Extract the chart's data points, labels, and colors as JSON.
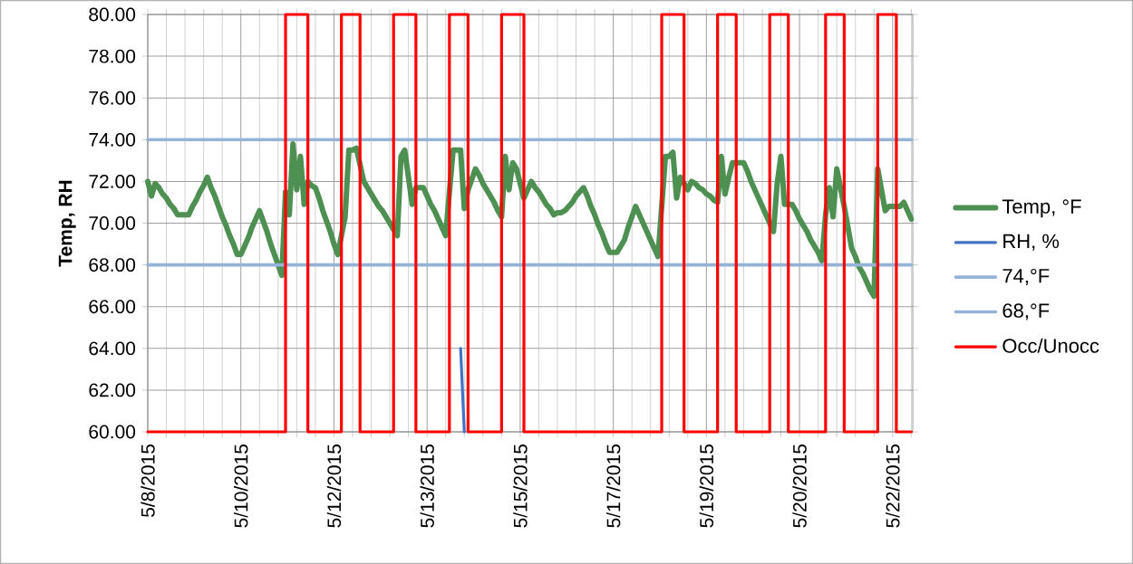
{
  "chart_data": {
    "type": "line",
    "ylabel": "Temp, RH",
    "categories": [
      "5/8/2015",
      null,
      null,
      null,
      null,
      null,
      null,
      null,
      null,
      null,
      null,
      null,
      null,
      null,
      null,
      null,
      null,
      null,
      null,
      null,
      null,
      null,
      null,
      null,
      null,
      "5/10/2015",
      null,
      null,
      null,
      null,
      null,
      null,
      null,
      null,
      null,
      null,
      null,
      null,
      null,
      null,
      null,
      null,
      null,
      null,
      null,
      null,
      null,
      null,
      null,
      null,
      "5/12/2015",
      null,
      null,
      null,
      null,
      null,
      null,
      null,
      null,
      null,
      null,
      null,
      null,
      null,
      null,
      null,
      null,
      null,
      null,
      null,
      null,
      null,
      null,
      null,
      null,
      "5/13/2015",
      null,
      null,
      null,
      null,
      null,
      null,
      null,
      null,
      null,
      null,
      null,
      null,
      null,
      null,
      null,
      null,
      null,
      null,
      null,
      null,
      null,
      null,
      null,
      null,
      "5/15/2015",
      null,
      null,
      null,
      null,
      null,
      null,
      null,
      null,
      null,
      null,
      null,
      null,
      null,
      null,
      null,
      null,
      null,
      null,
      null,
      null,
      null,
      null,
      null,
      null,
      "5/17/2015",
      null,
      null,
      null,
      null,
      null,
      null,
      null,
      null,
      null,
      null,
      null,
      null,
      null,
      null,
      null,
      null,
      null,
      null,
      null,
      null,
      null,
      null,
      null,
      null,
      "5/19/2015",
      null,
      null,
      null,
      null,
      null,
      null,
      null,
      null,
      null,
      null,
      null,
      null,
      null,
      null,
      null,
      null,
      null,
      null,
      null,
      null,
      null,
      null,
      null,
      null,
      "5/20/2015",
      null,
      null,
      null,
      null,
      null,
      null,
      null,
      null,
      null,
      null,
      null,
      null,
      null,
      null,
      null,
      null,
      null,
      null,
      null,
      null,
      null,
      null,
      null,
      null,
      "5/22/2015",
      null,
      null,
      null,
      null,
      null
    ],
    "ylim": [
      60,
      80
    ],
    "yticks": [
      {
        "value": 60,
        "label": "60.00"
      },
      {
        "value": 62,
        "label": "62.00"
      },
      {
        "value": 64,
        "label": "64.00"
      },
      {
        "value": 66,
        "label": "66.00"
      },
      {
        "value": 68,
        "label": "68.00"
      },
      {
        "value": 70,
        "label": "70.00"
      },
      {
        "value": 72,
        "label": "72.00"
      },
      {
        "value": 74,
        "label": "74.00"
      },
      {
        "value": 76,
        "label": "76.00"
      },
      {
        "value": 78,
        "label": "78.00"
      },
      {
        "value": 80,
        "label": "80.00"
      }
    ],
    "grid": true,
    "legend": "right",
    "marker": "none",
    "line_style": "solid",
    "series": [
      {
        "name": "Temp, °F",
        "color": "#4e8f52",
        "values": [
          72.0,
          71.3,
          71.9,
          71.7,
          71.4,
          71.2,
          70.9,
          70.7,
          70.4,
          70.4,
          70.4,
          70.4,
          70.8,
          71.1,
          71.5,
          71.8,
          72.2,
          71.7,
          71.3,
          70.8,
          70.3,
          69.9,
          69.4,
          69.0,
          68.5,
          68.5,
          68.9,
          69.3,
          69.8,
          70.2,
          70.6,
          70.1,
          69.6,
          69.0,
          68.5,
          68.0,
          67.5,
          71.5,
          70.4,
          73.8,
          71.6,
          73.2,
          70.9,
          72.0,
          71.8,
          71.7,
          71.2,
          70.6,
          70.1,
          69.6,
          69.0,
          68.5,
          69.4,
          70.3,
          73.5,
          73.5,
          73.6,
          72.8,
          72.0,
          71.7,
          71.4,
          71.1,
          70.8,
          70.6,
          70.3,
          70.0,
          69.7,
          69.4,
          73.2,
          73.5,
          72.2,
          70.9,
          71.7,
          71.7,
          71.7,
          71.3,
          70.9,
          70.6,
          70.2,
          69.8,
          69.4,
          71.5,
          73.5,
          73.5,
          73.5,
          70.7,
          71.6,
          72.1,
          72.6,
          72.3,
          71.9,
          71.6,
          71.3,
          71.0,
          70.6,
          70.3,
          73.2,
          71.6,
          72.9,
          72.6,
          71.9,
          71.2,
          71.6,
          72.0,
          71.7,
          71.5,
          71.2,
          70.9,
          70.7,
          70.4,
          70.5,
          70.5,
          70.6,
          70.8,
          71.0,
          71.3,
          71.5,
          71.7,
          71.3,
          70.8,
          70.4,
          69.9,
          69.5,
          69.0,
          68.6,
          68.6,
          68.6,
          68.9,
          69.2,
          69.8,
          70.3,
          70.8,
          70.4,
          70.0,
          69.6,
          69.2,
          68.8,
          68.4,
          70.8,
          73.2,
          73.2,
          73.4,
          71.2,
          72.2,
          71.9,
          71.6,
          72.0,
          71.9,
          71.7,
          71.6,
          71.4,
          71.3,
          71.1,
          71.0,
          73.2,
          71.4,
          72.2,
          72.9,
          72.9,
          72.9,
          72.9,
          72.5,
          72.0,
          71.6,
          71.2,
          70.8,
          70.4,
          70.0,
          69.6,
          71.9,
          73.2,
          70.9,
          70.9,
          70.9,
          70.6,
          70.2,
          69.9,
          69.6,
          69.2,
          68.9,
          68.6,
          68.2,
          70.4,
          71.7,
          70.3,
          72.6,
          71.7,
          70.8,
          69.8,
          68.8,
          68.4,
          67.9,
          67.6,
          67.2,
          66.8,
          66.5,
          72.6,
          71.6,
          70.6,
          70.8,
          70.8,
          70.8,
          70.8,
          71.0,
          70.6,
          70.2
        ]
      },
      {
        "name": "RH, %",
        "color": "#4472c4",
        "values": [
          null,
          null,
          null,
          null,
          null,
          null,
          null,
          null,
          null,
          null,
          null,
          null,
          null,
          null,
          null,
          null,
          null,
          null,
          null,
          null,
          null,
          null,
          null,
          null,
          null,
          null,
          null,
          null,
          null,
          null,
          null,
          null,
          null,
          null,
          null,
          null,
          null,
          null,
          null,
          null,
          null,
          null,
          null,
          null,
          null,
          null,
          null,
          null,
          null,
          null,
          null,
          null,
          null,
          null,
          null,
          null,
          null,
          null,
          null,
          null,
          null,
          null,
          null,
          null,
          null,
          null,
          null,
          null,
          null,
          null,
          null,
          null,
          null,
          null,
          null,
          null,
          null,
          null,
          null,
          null,
          null,
          null,
          null,
          null,
          64,
          60,
          null,
          null,
          null,
          null,
          null,
          null,
          null,
          null,
          null,
          null,
          null,
          null,
          null,
          null,
          null,
          null,
          null,
          null,
          null,
          null,
          null,
          null,
          null,
          null,
          null,
          null,
          null,
          null,
          null,
          null,
          null,
          null,
          null,
          null,
          null,
          null,
          null,
          null,
          null,
          null,
          null,
          null,
          null,
          null,
          null,
          null,
          null,
          null,
          null,
          null,
          null,
          null,
          null,
          null,
          null,
          null,
          null,
          null,
          null,
          null,
          null,
          null,
          null,
          null,
          null,
          null,
          null,
          null,
          null,
          null,
          null,
          null,
          null,
          null,
          null,
          null,
          null,
          null,
          null,
          null,
          null,
          null,
          null,
          null,
          null,
          null,
          null,
          null,
          null,
          null,
          null,
          null,
          null,
          null,
          null,
          null,
          null,
          null,
          null,
          null,
          null,
          null,
          null,
          null,
          null,
          null,
          null,
          null,
          null,
          null,
          null,
          null,
          null,
          null,
          null,
          null,
          null,
          null,
          null,
          null
        ]
      },
      {
        "name": "74,°F",
        "color": "#95b3d7",
        "values": [
          74,
          74,
          74,
          74,
          74,
          74,
          74,
          74,
          74,
          74,
          74,
          74,
          74,
          74,
          74,
          74,
          74,
          74,
          74,
          74,
          74,
          74,
          74,
          74,
          74,
          74,
          74,
          74,
          74,
          74,
          74,
          74,
          74,
          74,
          74,
          74,
          74,
          74,
          74,
          74,
          74,
          74,
          74,
          74,
          74,
          74,
          74,
          74,
          74,
          74,
          74,
          74,
          74,
          74,
          74,
          74,
          74,
          74,
          74,
          74,
          74,
          74,
          74,
          74,
          74,
          74,
          74,
          74,
          74,
          74,
          74,
          74,
          74,
          74,
          74,
          74,
          74,
          74,
          74,
          74,
          74,
          74,
          74,
          74,
          74,
          74,
          74,
          74,
          74,
          74,
          74,
          74,
          74,
          74,
          74,
          74,
          74,
          74,
          74,
          74,
          74,
          74,
          74,
          74,
          74,
          74,
          74,
          74,
          74,
          74,
          74,
          74,
          74,
          74,
          74,
          74,
          74,
          74,
          74,
          74,
          74,
          74,
          74,
          74,
          74,
          74,
          74,
          74,
          74,
          74,
          74,
          74,
          74,
          74,
          74,
          74,
          74,
          74,
          74,
          74,
          74,
          74,
          74,
          74,
          74,
          74,
          74,
          74,
          74,
          74,
          74,
          74,
          74,
          74,
          74,
          74,
          74,
          74,
          74,
          74,
          74,
          74,
          74,
          74,
          74,
          74,
          74,
          74,
          74,
          74,
          74,
          74,
          74,
          74,
          74,
          74,
          74,
          74,
          74,
          74,
          74,
          74,
          74,
          74,
          74,
          74,
          74,
          74,
          74,
          74,
          74,
          74,
          74,
          74,
          74,
          74,
          74,
          74,
          74,
          74,
          74,
          74,
          74,
          74,
          74,
          74
        ]
      },
      {
        "name": "68,°F",
        "color": "#95b3d7",
        "values": [
          68,
          68,
          68,
          68,
          68,
          68,
          68,
          68,
          68,
          68,
          68,
          68,
          68,
          68,
          68,
          68,
          68,
          68,
          68,
          68,
          68,
          68,
          68,
          68,
          68,
          68,
          68,
          68,
          68,
          68,
          68,
          68,
          68,
          68,
          68,
          68,
          68,
          68,
          68,
          68,
          68,
          68,
          68,
          68,
          68,
          68,
          68,
          68,
          68,
          68,
          68,
          68,
          68,
          68,
          68,
          68,
          68,
          68,
          68,
          68,
          68,
          68,
          68,
          68,
          68,
          68,
          68,
          68,
          68,
          68,
          68,
          68,
          68,
          68,
          68,
          68,
          68,
          68,
          68,
          68,
          68,
          68,
          68,
          68,
          68,
          68,
          68,
          68,
          68,
          68,
          68,
          68,
          68,
          68,
          68,
          68,
          68,
          68,
          68,
          68,
          68,
          68,
          68,
          68,
          68,
          68,
          68,
          68,
          68,
          68,
          68,
          68,
          68,
          68,
          68,
          68,
          68,
          68,
          68,
          68,
          68,
          68,
          68,
          68,
          68,
          68,
          68,
          68,
          68,
          68,
          68,
          68,
          68,
          68,
          68,
          68,
          68,
          68,
          68,
          68,
          68,
          68,
          68,
          68,
          68,
          68,
          68,
          68,
          68,
          68,
          68,
          68,
          68,
          68,
          68,
          68,
          68,
          68,
          68,
          68,
          68,
          68,
          68,
          68,
          68,
          68,
          68,
          68,
          68,
          68,
          68,
          68,
          68,
          68,
          68,
          68,
          68,
          68,
          68,
          68,
          68,
          68,
          68,
          68,
          68,
          68,
          68,
          68,
          68,
          68,
          68,
          68,
          68,
          68,
          68,
          68,
          68,
          68,
          68,
          68,
          68,
          68,
          68,
          68,
          68,
          68
        ]
      },
      {
        "name": "Occ/Unocc",
        "type": "step",
        "color": "#ff0000",
        "values": [
          60,
          60,
          60,
          60,
          60,
          60,
          60,
          60,
          60,
          60,
          60,
          60,
          60,
          60,
          60,
          60,
          60,
          60,
          60,
          60,
          60,
          60,
          60,
          60,
          60,
          60,
          60,
          60,
          60,
          60,
          60,
          60,
          60,
          60,
          60,
          60,
          60,
          80,
          80,
          80,
          80,
          80,
          80,
          60,
          60,
          60,
          60,
          60,
          60,
          60,
          60,
          60,
          80,
          80,
          80,
          80,
          80,
          60,
          60,
          60,
          60,
          60,
          60,
          60,
          60,
          60,
          80,
          80,
          80,
          80,
          80,
          80,
          60,
          60,
          60,
          60,
          60,
          60,
          60,
          60,
          60,
          80,
          80,
          80,
          80,
          80,
          60,
          60,
          60,
          60,
          60,
          60,
          60,
          60,
          60,
          80,
          80,
          80,
          80,
          80,
          80,
          60,
          60,
          60,
          60,
          60,
          60,
          60,
          60,
          60,
          60,
          60,
          60,
          60,
          60,
          60,
          60,
          60,
          60,
          60,
          60,
          60,
          60,
          60,
          60,
          60,
          60,
          60,
          60,
          60,
          60,
          60,
          60,
          60,
          60,
          60,
          60,
          60,
          80,
          80,
          80,
          80,
          80,
          80,
          60,
          60,
          60,
          60,
          60,
          60,
          60,
          60,
          60,
          80,
          80,
          80,
          80,
          80,
          60,
          60,
          60,
          60,
          60,
          60,
          60,
          60,
          60,
          80,
          80,
          80,
          80,
          80,
          60,
          60,
          60,
          60,
          60,
          60,
          60,
          60,
          60,
          60,
          80,
          80,
          80,
          80,
          80,
          60,
          60,
          60,
          60,
          60,
          60,
          60,
          60,
          60,
          80,
          80,
          80,
          80,
          80,
          60,
          60,
          60,
          60,
          60
        ]
      }
    ]
  }
}
